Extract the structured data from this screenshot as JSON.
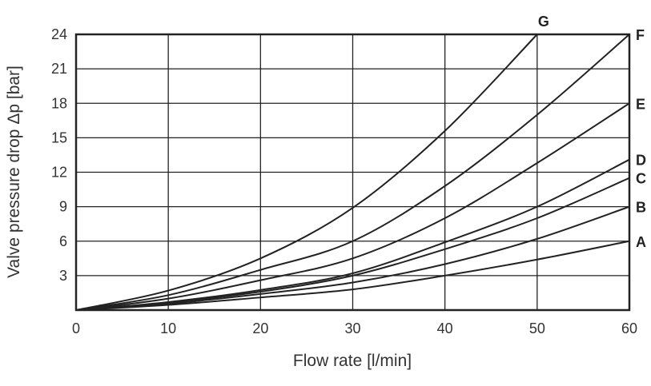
{
  "chart_data": {
    "type": "line",
    "title": "",
    "xlabel": "Flow rate [l/min]",
    "ylabel": "Valve pressure drop Δp [bar]",
    "xlim": [
      0,
      60
    ],
    "ylim": [
      0,
      24
    ],
    "xticks": [
      "0",
      "10",
      "20",
      "30",
      "40",
      "50",
      "60"
    ],
    "yticks": [
      "3",
      "6",
      "9",
      "12",
      "15",
      "18",
      "21",
      "24"
    ],
    "grid": true,
    "line_color": "#222222",
    "series": [
      {
        "name": "A",
        "x": [
          0,
          10,
          20,
          30,
          40,
          50,
          60
        ],
        "y": [
          0,
          0.45,
          1.1,
          1.8,
          3.0,
          4.4,
          6.0
        ]
      },
      {
        "name": "B",
        "x": [
          0,
          10,
          20,
          30,
          40,
          50,
          60
        ],
        "y": [
          0,
          0.55,
          1.4,
          2.4,
          4.0,
          6.2,
          9.0
        ]
      },
      {
        "name": "C",
        "x": [
          0,
          10,
          20,
          30,
          40,
          50,
          60
        ],
        "y": [
          0,
          0.65,
          1.6,
          3.0,
          5.3,
          8.0,
          11.5
        ]
      },
      {
        "name": "D",
        "x": [
          0,
          10,
          20,
          30,
          40,
          50,
          60
        ],
        "y": [
          0,
          0.7,
          1.75,
          3.2,
          5.9,
          9.0,
          13.1
        ]
      },
      {
        "name": "E",
        "x": [
          0,
          10,
          20,
          30,
          40,
          50,
          60
        ],
        "y": [
          0,
          1.0,
          2.6,
          4.5,
          8.0,
          12.8,
          18.0
        ]
      },
      {
        "name": "F",
        "x": [
          0,
          10,
          20,
          30,
          40,
          50,
          60
        ],
        "y": [
          0,
          1.3,
          3.5,
          6.0,
          10.8,
          17.0,
          24.0
        ]
      },
      {
        "name": "G",
        "x": [
          0,
          10,
          20,
          30,
          40,
          50
        ],
        "y": [
          0,
          1.7,
          4.5,
          8.9,
          15.6,
          24.0
        ]
      }
    ]
  }
}
